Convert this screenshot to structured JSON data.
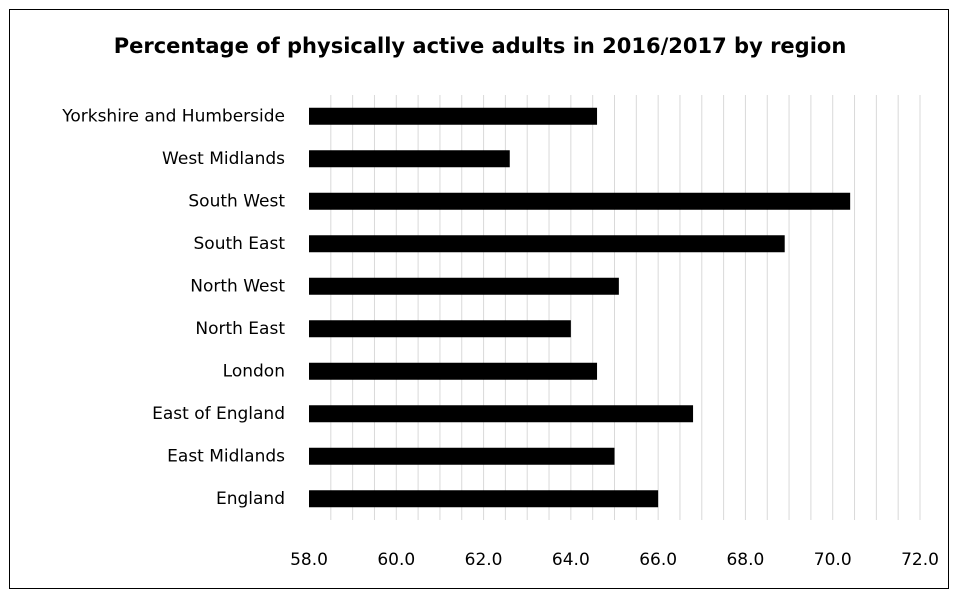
{
  "chart_data": {
    "type": "bar",
    "orientation": "horizontal",
    "title": "Percentage of physically active adults in 2016/2017 by region",
    "xlabel": "",
    "ylabel": "",
    "categories": [
      "Yorkshire and Humberside",
      "West Midlands",
      "South West",
      "South East",
      "North West",
      "North East",
      "London",
      "East of England",
      "East Midlands",
      "England"
    ],
    "values": [
      64.6,
      62.6,
      70.4,
      68.9,
      65.1,
      64.0,
      64.6,
      66.8,
      65.0,
      66.0
    ],
    "xlim": [
      58.0,
      72.0
    ],
    "xticks": [
      "58.0",
      "60.0",
      "62.0",
      "64.0",
      "66.0",
      "68.0",
      "70.0",
      "72.0"
    ],
    "grid": "vertical minor gridlines",
    "legend": "none",
    "bar_color": "#000000",
    "grid_color": "#d9d9d9"
  }
}
